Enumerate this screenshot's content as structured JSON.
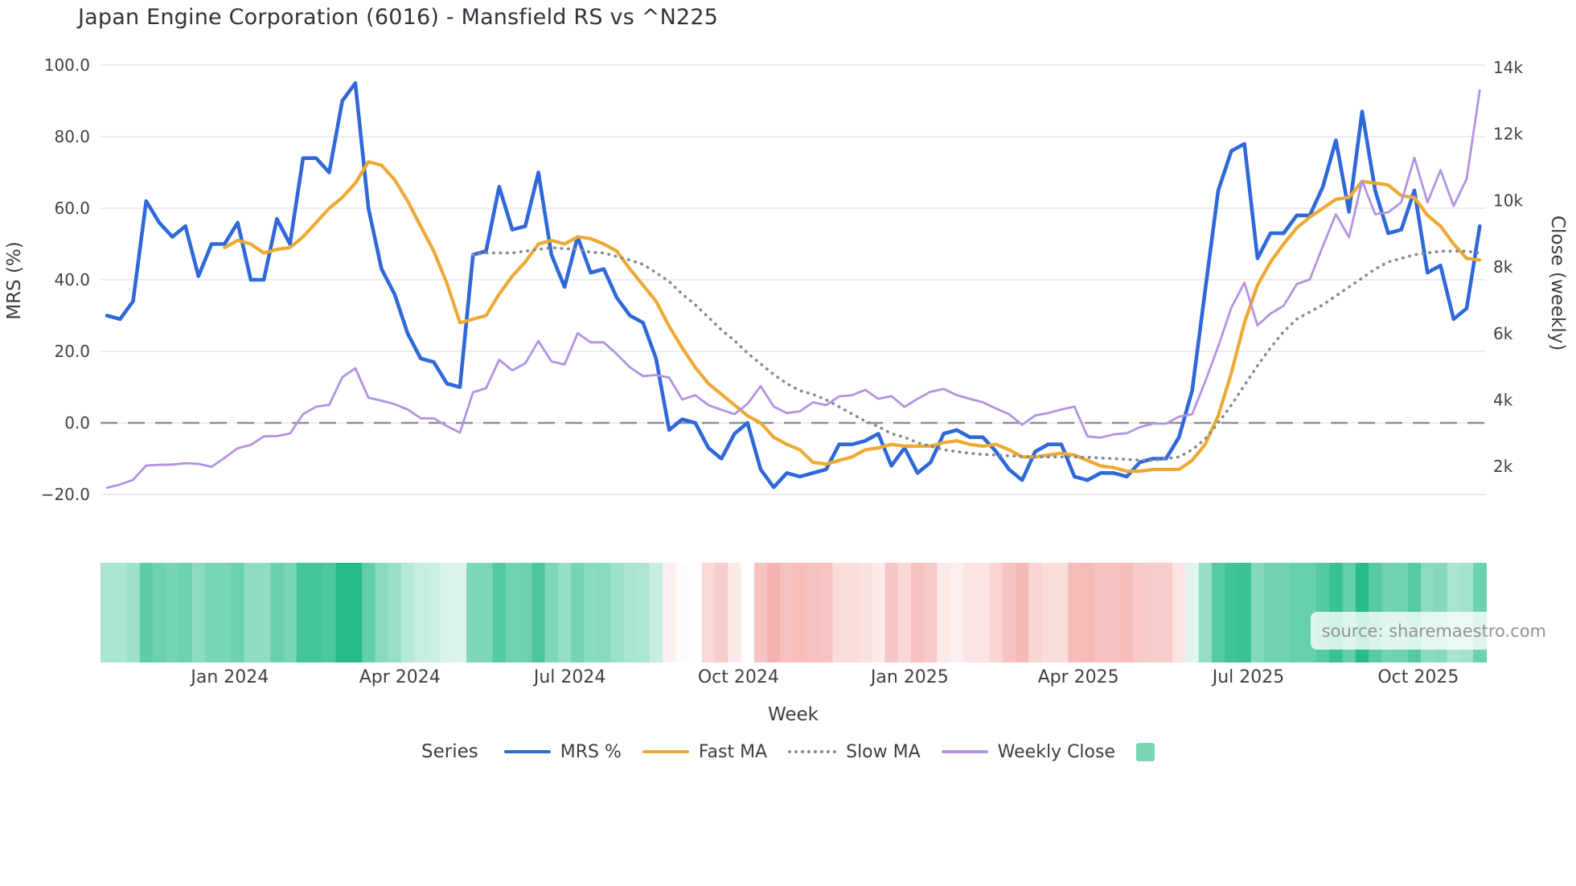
{
  "title": "Japan Engine Corporation (6016) - Mansfield RS vs ^N225",
  "source_label": "source: sharemaestro.com",
  "legend": {
    "title": "Series",
    "heat_swatch_color": "#7bd7b2"
  },
  "chart_data": {
    "type": "line",
    "title": "Japan Engine Corporation (6016) - Mansfield RS vs ^N225",
    "weeks_total": 106,
    "x_axis": {
      "label": "Week",
      "tick_weeks": [
        9.4,
        22.4,
        35.4,
        48.3,
        61.4,
        74.3,
        87.3,
        100.3
      ],
      "tick_labels": [
        "Jan 2024",
        "Apr 2024",
        "Jul 2024",
        "Oct 2024",
        "Jan 2025",
        "Apr 2025",
        "Jul 2025",
        "Oct 2025"
      ]
    },
    "y_left": {
      "label": "MRS (%)",
      "tick_values": [
        100,
        80,
        60,
        40,
        20,
        0,
        -20
      ],
      "tick_labels": [
        "100.0",
        "80.0",
        "60.0",
        "40.0",
        "20.0",
        "0.0",
        "−20.0"
      ],
      "range": [
        -25,
        105
      ],
      "zero_line": 0,
      "grid": true
    },
    "y_right": {
      "label": "Close (weekly)",
      "tick_values": [
        14000,
        12000,
        10000,
        8000,
        6000,
        4000,
        2000
      ],
      "tick_labels": [
        "14k",
        "12k",
        "10k",
        "8k",
        "6k",
        "4k",
        "2k"
      ],
      "range": [
        1300,
        14500
      ]
    },
    "zero_line_color": "#8a8f98",
    "series": [
      {
        "name": "MRS %",
        "color": "#2f68d8",
        "style": "solid",
        "width": 4.6,
        "axis": "left",
        "start_week": 0,
        "values": [
          30,
          29,
          34,
          62,
          56,
          52,
          55,
          41,
          50,
          50,
          56,
          40,
          40,
          57,
          50,
          74,
          74,
          70,
          90,
          95,
          60,
          43,
          36,
          25,
          18,
          17,
          11,
          10,
          47,
          48,
          66,
          54,
          55,
          70,
          47,
          38,
          52,
          42,
          43,
          35,
          30,
          28,
          18,
          -2,
          1,
          0,
          -7,
          -10,
          -3,
          0,
          -13,
          -18,
          -14,
          -15,
          -14,
          -13,
          -6,
          -6,
          -5,
          -3,
          -12,
          -7,
          -14,
          -11,
          -3,
          -2,
          -4,
          -4,
          -8,
          -13,
          -16,
          -8,
          -6,
          -6,
          -15,
          -16,
          -14,
          -14,
          -15,
          -11,
          -10,
          -10,
          -4,
          9,
          37,
          65,
          76,
          78,
          46,
          53,
          53,
          58,
          58,
          66,
          79,
          59,
          87,
          65,
          53,
          54,
          65,
          42,
          44,
          29,
          32,
          55
        ]
      },
      {
        "name": "Fast MA",
        "color": "#eda933",
        "style": "solid",
        "width": 4.2,
        "axis": "left",
        "start_week": 9,
        "values": [
          49,
          51,
          50,
          47.5,
          48.5,
          49,
          52,
          56,
          60,
          63,
          67,
          73,
          72,
          68,
          62,
          55,
          48,
          39,
          28,
          29,
          30,
          36,
          41,
          45,
          50,
          51,
          50,
          52,
          51.5,
          50,
          48,
          43,
          38.5,
          34,
          27,
          21,
          15.5,
          11,
          8,
          5,
          2,
          0,
          -4,
          -6,
          -7.5,
          -11,
          -11.5,
          -10.5,
          -9.5,
          -7.5,
          -7,
          -6,
          -6.5,
          -6.5,
          -6.5,
          -5.5,
          -5,
          -6,
          -6.5,
          -6,
          -7.5,
          -9.5,
          -9.5,
          -9,
          -8.5,
          -9,
          -10.5,
          -12,
          -12.5,
          -13.5,
          -13.5,
          -13,
          -13,
          -13,
          -10.5,
          -6,
          2,
          14,
          28,
          38.5,
          45,
          50,
          54.5,
          57.5,
          60,
          62.5,
          63,
          67.5,
          67,
          66.5,
          63.5,
          63,
          58,
          55,
          50,
          46,
          45.5
        ]
      },
      {
        "name": "Slow MA",
        "color": "#848a93",
        "style": "dotted",
        "width": 3.6,
        "axis": "left",
        "start_week": 28,
        "values": [
          47,
          47.5,
          47.5,
          47.5,
          48,
          48.5,
          49,
          48.7,
          48.5,
          47.7,
          47.5,
          46.5,
          45.5,
          44.3,
          42,
          39.5,
          36,
          33,
          29.5,
          26,
          23,
          19.5,
          16.5,
          13.5,
          11,
          9,
          8,
          6.5,
          4.5,
          2.5,
          0.5,
          -1,
          -3,
          -4,
          -5.5,
          -6.5,
          -7.5,
          -8,
          -8.5,
          -8.8,
          -9,
          -9.2,
          -9.4,
          -9.5,
          -9.5,
          -9.5,
          -9.5,
          -9.6,
          -9.8,
          -10,
          -10.2,
          -10.4,
          -10.5,
          -10,
          -9.5,
          -7.5,
          -4.5,
          0,
          5,
          10.5,
          16,
          21,
          25.5,
          29,
          31,
          33,
          35.5,
          38,
          40.5,
          43,
          45,
          46,
          47,
          47.5,
          48,
          48,
          48,
          47.5
        ]
      },
      {
        "name": "Weekly Close",
        "color": "#b392e2",
        "style": "solid",
        "width": 2.8,
        "axis": "right",
        "start_week": 0,
        "values": [
          1360,
          1460,
          1600,
          2030,
          2050,
          2060,
          2100,
          2080,
          1990,
          2260,
          2550,
          2650,
          2905,
          2915,
          2990,
          3575,
          3800,
          3855,
          4685,
          4955,
          4070,
          3980,
          3875,
          3715,
          3450,
          3450,
          3215,
          3020,
          4230,
          4355,
          5210,
          4890,
          5105,
          5775,
          5160,
          5070,
          6010,
          5735,
          5735,
          5380,
          4985,
          4720,
          4750,
          4675,
          4015,
          4145,
          3845,
          3705,
          3575,
          3885,
          4420,
          3800,
          3610,
          3660,
          3930,
          3845,
          4110,
          4145,
          4305,
          4035,
          4120,
          3790,
          4035,
          4250,
          4335,
          4145,
          4035,
          3930,
          3745,
          3575,
          3255,
          3535,
          3610,
          3715,
          3800,
          2905,
          2870,
          2965,
          3000,
          3180,
          3290,
          3290,
          3500,
          3575,
          4550,
          5615,
          6780,
          7530,
          6245,
          6600,
          6835,
          7485,
          7625,
          8630,
          9590,
          8895,
          10595,
          9590,
          9645,
          9945,
          11290,
          9945,
          10915,
          9835,
          10650,
          13310
        ]
      }
    ],
    "heatmap": {
      "based_on": "MRS %",
      "positive_color": "#25bb89",
      "negative_color": "#f3b1ae",
      "neutral_color": "#ffffff",
      "positive_full_at": 88,
      "negative_full_at": -19
    }
  }
}
